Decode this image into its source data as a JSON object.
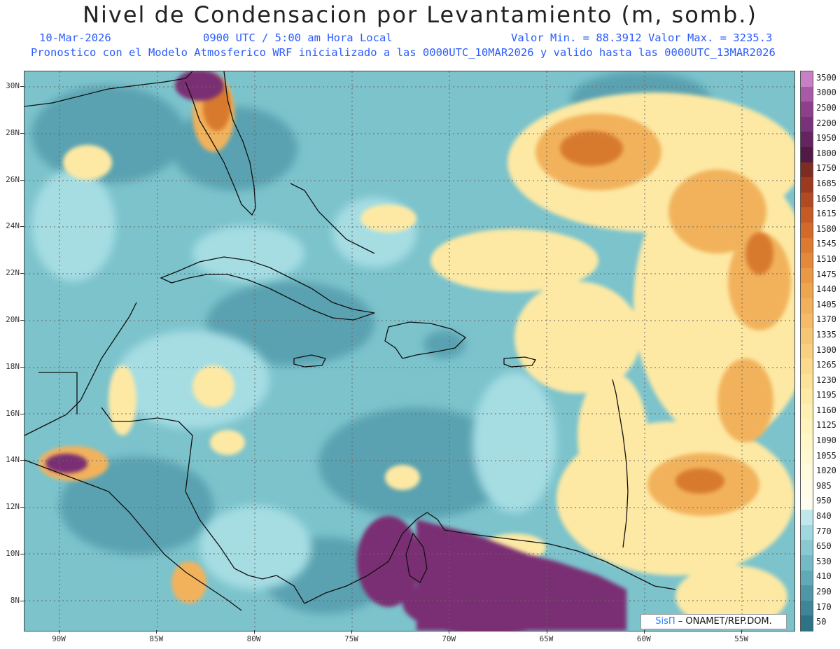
{
  "header": {
    "title": "Nivel de Condensacion por Levantamiento (m, somb.)",
    "date": "10-Mar-2026",
    "time": "0900 UTC / 5:00 am Hora Local",
    "min_max": "Valor Min. = 88.3912  Valor Max. = 3235.3",
    "forecast_info": "Pronostico con el Modelo Atmosferico WRF inicializado a las 0000UTC_10MAR2026 y valido hasta las  0000UTC_13MAR2026"
  },
  "map": {
    "lat_labels": [
      "30N",
      "28N",
      "26N",
      "24N",
      "22N",
      "20N",
      "18N",
      "16N",
      "14N",
      "12N",
      "10N",
      "8N"
    ],
    "lon_labels": [
      "90W",
      "85W",
      "80W",
      "75W",
      "70W",
      "65W",
      "60W",
      "55W"
    ],
    "credit_brand": "SisΠ",
    "credit_org": "– ONAMET/REP.DOM."
  },
  "colorbar": {
    "labels": [
      "3500",
      "3000",
      "2500",
      "2200",
      "1950",
      "1800",
      "1750",
      "1685",
      "1650",
      "1615",
      "1580",
      "1545",
      "1510",
      "1475",
      "1440",
      "1405",
      "1370",
      "1335",
      "1300",
      "1265",
      "1230",
      "1195",
      "1160",
      "1125",
      "1090",
      "1055",
      "1020",
      "985",
      "950",
      "840",
      "770",
      "650",
      "530",
      "410",
      "290",
      "170",
      "50"
    ],
    "colors": [
      "#c77fc6",
      "#a95aa6",
      "#8d3f8c",
      "#78327a",
      "#64245f",
      "#511a46",
      "#7d2c22",
      "#9b3a1f",
      "#b14a22",
      "#c45a25",
      "#d36a2a",
      "#de7a30",
      "#e4893a",
      "#ea9843",
      "#eea54f",
      "#f2b05c",
      "#f5bb68",
      "#f7c674",
      "#f9d080",
      "#fbda8c",
      "#fce398",
      "#fdeaa4",
      "#fdf0b0",
      "#fef4bc",
      "#fff7c6",
      "#fff9d2",
      "#fffadd",
      "#fffbe6",
      "#fefcec",
      "#bfe7ec",
      "#9fd8df",
      "#88c9d2",
      "#73bac6",
      "#60a9b7",
      "#4f97a7",
      "#3f8597",
      "#2e7286"
    ]
  },
  "colors": {
    "ocean_base": "#7cc3cc",
    "ocean_dark": "#4f98a8",
    "ocean_light": "#a6dde3",
    "warm_light": "#fde9a4",
    "warm_mid": "#f2b25c",
    "warm_dark": "#d87a2e",
    "high_purple": "#7a2e73",
    "coast": "#111111",
    "title_blue": "#2a5cff"
  }
}
